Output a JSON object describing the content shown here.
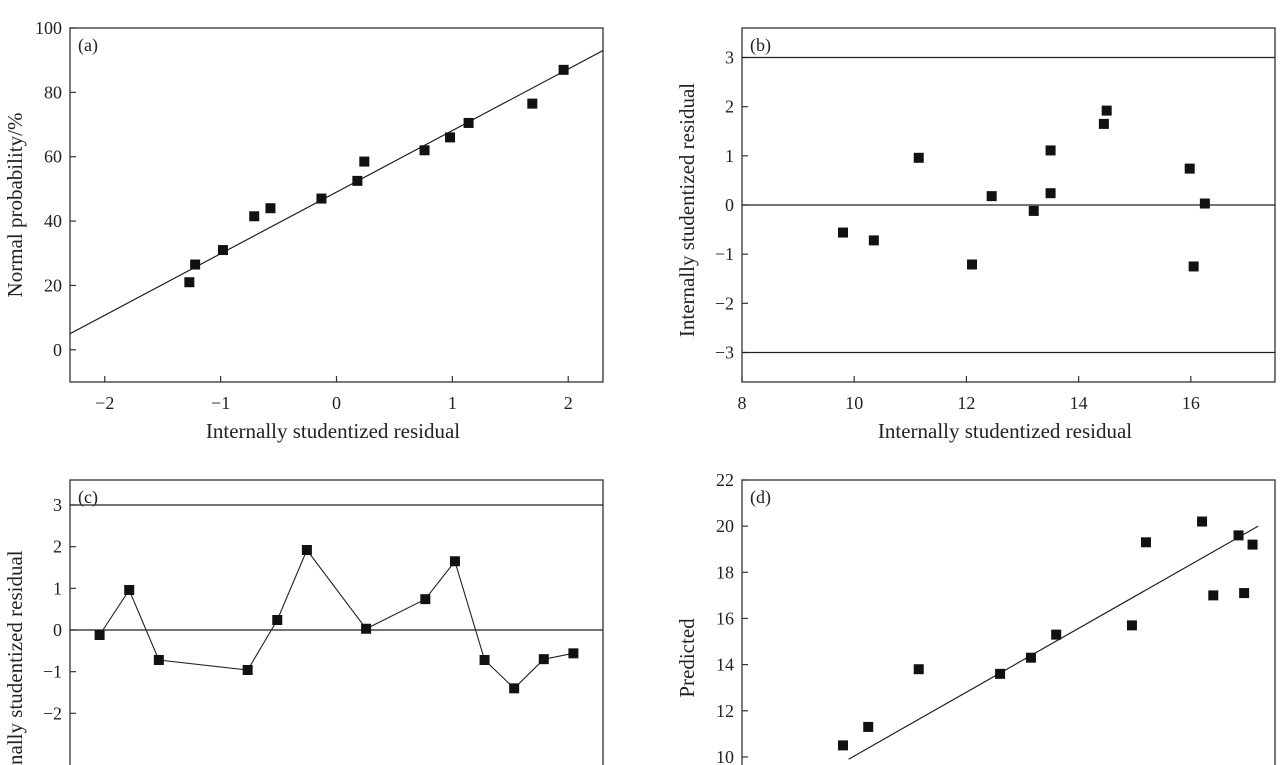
{
  "chart_data": [
    {
      "id": "a",
      "type": "scatter",
      "panel_label": "(a)",
      "title": "",
      "xlabel": "Internally studentized residual",
      "ylabel": "Normal probability/%",
      "xlim": [
        -2.3,
        2.3
      ],
      "ylim": [
        -10,
        100
      ],
      "xticks": [
        -2,
        -1,
        0,
        1,
        2
      ],
      "xtick_labels": [
        "−2",
        "−1",
        "0",
        "1",
        "2"
      ],
      "yticks": [
        0,
        20,
        40,
        60,
        80,
        100
      ],
      "ytick_labels": [
        "0",
        "20",
        "40",
        "60",
        "80",
        "100"
      ],
      "points": [
        [
          -1.27,
          21
        ],
        [
          -1.22,
          26.5
        ],
        [
          -0.98,
          31
        ],
        [
          -0.71,
          41.5
        ],
        [
          -0.57,
          44
        ],
        [
          -0.13,
          47
        ],
        [
          0.18,
          52.5
        ],
        [
          0.24,
          58.5
        ],
        [
          0.76,
          62
        ],
        [
          0.98,
          66
        ],
        [
          1.14,
          70.5
        ],
        [
          1.69,
          76.5
        ],
        [
          1.96,
          87
        ]
      ],
      "fit_line": [
        [
          -2.3,
          5
        ],
        [
          2.3,
          93
        ]
      ]
    },
    {
      "id": "b",
      "type": "scatter",
      "panel_label": "(b)",
      "title": "",
      "xlabel": "Internally studentized residual",
      "ylabel": "Internally studentized residual",
      "xlim": [
        8,
        17.5
      ],
      "ylim": [
        -3.6,
        3.6
      ],
      "xticks": [
        8,
        10,
        12,
        14,
        16
      ],
      "xtick_labels": [
        "8",
        "10",
        "12",
        "14",
        "16"
      ],
      "yticks": [
        -3,
        -2,
        -1,
        0,
        1,
        2,
        3
      ],
      "ytick_labels": [
        "−3",
        "−2",
        "−1",
        "0",
        "1",
        "2",
        "3"
      ],
      "hlines": [
        3,
        0,
        -3
      ],
      "points": [
        [
          9.8,
          -0.56
        ],
        [
          10.35,
          -0.72
        ],
        [
          11.15,
          0.96
        ],
        [
          12.1,
          -1.21
        ],
        [
          12.45,
          0.18
        ],
        [
          13.2,
          -0.12
        ],
        [
          13.5,
          1.11
        ],
        [
          13.5,
          0.24
        ],
        [
          14.45,
          1.65
        ],
        [
          14.5,
          1.92
        ],
        [
          15.98,
          0.74
        ],
        [
          16.05,
          -1.25
        ],
        [
          16.25,
          0.03
        ]
      ]
    },
    {
      "id": "c",
      "type": "line",
      "panel_label": "(c)",
      "title": "",
      "xlabel": "",
      "ylabel": "Internally studentized residual",
      "ylabel_visible": "nally studentized residual",
      "xlim": [
        0,
        17.5
      ],
      "ylim": [
        -3.6,
        3.6
      ],
      "yticks": [
        -2,
        -1,
        0,
        1,
        2,
        3
      ],
      "ytick_labels": [
        "−2",
        "−1",
        "0",
        "1",
        "2",
        "3"
      ],
      "hlines": [
        3,
        0
      ],
      "x": [
        2,
        3,
        4,
        7,
        8,
        9,
        11,
        13,
        14,
        15,
        16,
        17,
        18
      ],
      "values": [
        -0.12,
        0.96,
        -0.72,
        -0.96,
        0.24,
        1.92,
        0.03,
        0.74,
        1.65,
        -0.72,
        -1.4,
        -0.7,
        -0.56
      ]
    },
    {
      "id": "d",
      "type": "scatter",
      "panel_label": "(d)",
      "title": "",
      "xlabel": "",
      "ylabel": "Predicted",
      "xlim": [
        8,
        17.5
      ],
      "ylim": [
        9,
        22
      ],
      "yticks": [
        10,
        12,
        14,
        16,
        18,
        20,
        22
      ],
      "ytick_labels": [
        "10",
        "12",
        "14",
        "16",
        "18",
        "20",
        "22"
      ],
      "points": [
        [
          9.8,
          10.5
        ],
        [
          10.25,
          11.3
        ],
        [
          11.15,
          13.8
        ],
        [
          12.6,
          13.6
        ],
        [
          13.15,
          14.3
        ],
        [
          13.6,
          15.3
        ],
        [
          14.95,
          15.7
        ],
        [
          15.2,
          19.3
        ],
        [
          16.2,
          20.2
        ],
        [
          16.4,
          17
        ],
        [
          16.85,
          19.6
        ],
        [
          16.95,
          17.1
        ],
        [
          17.1,
          19.2
        ]
      ],
      "fit_line": [
        [
          9.9,
          9.9
        ],
        [
          17.2,
          20
        ]
      ]
    }
  ]
}
